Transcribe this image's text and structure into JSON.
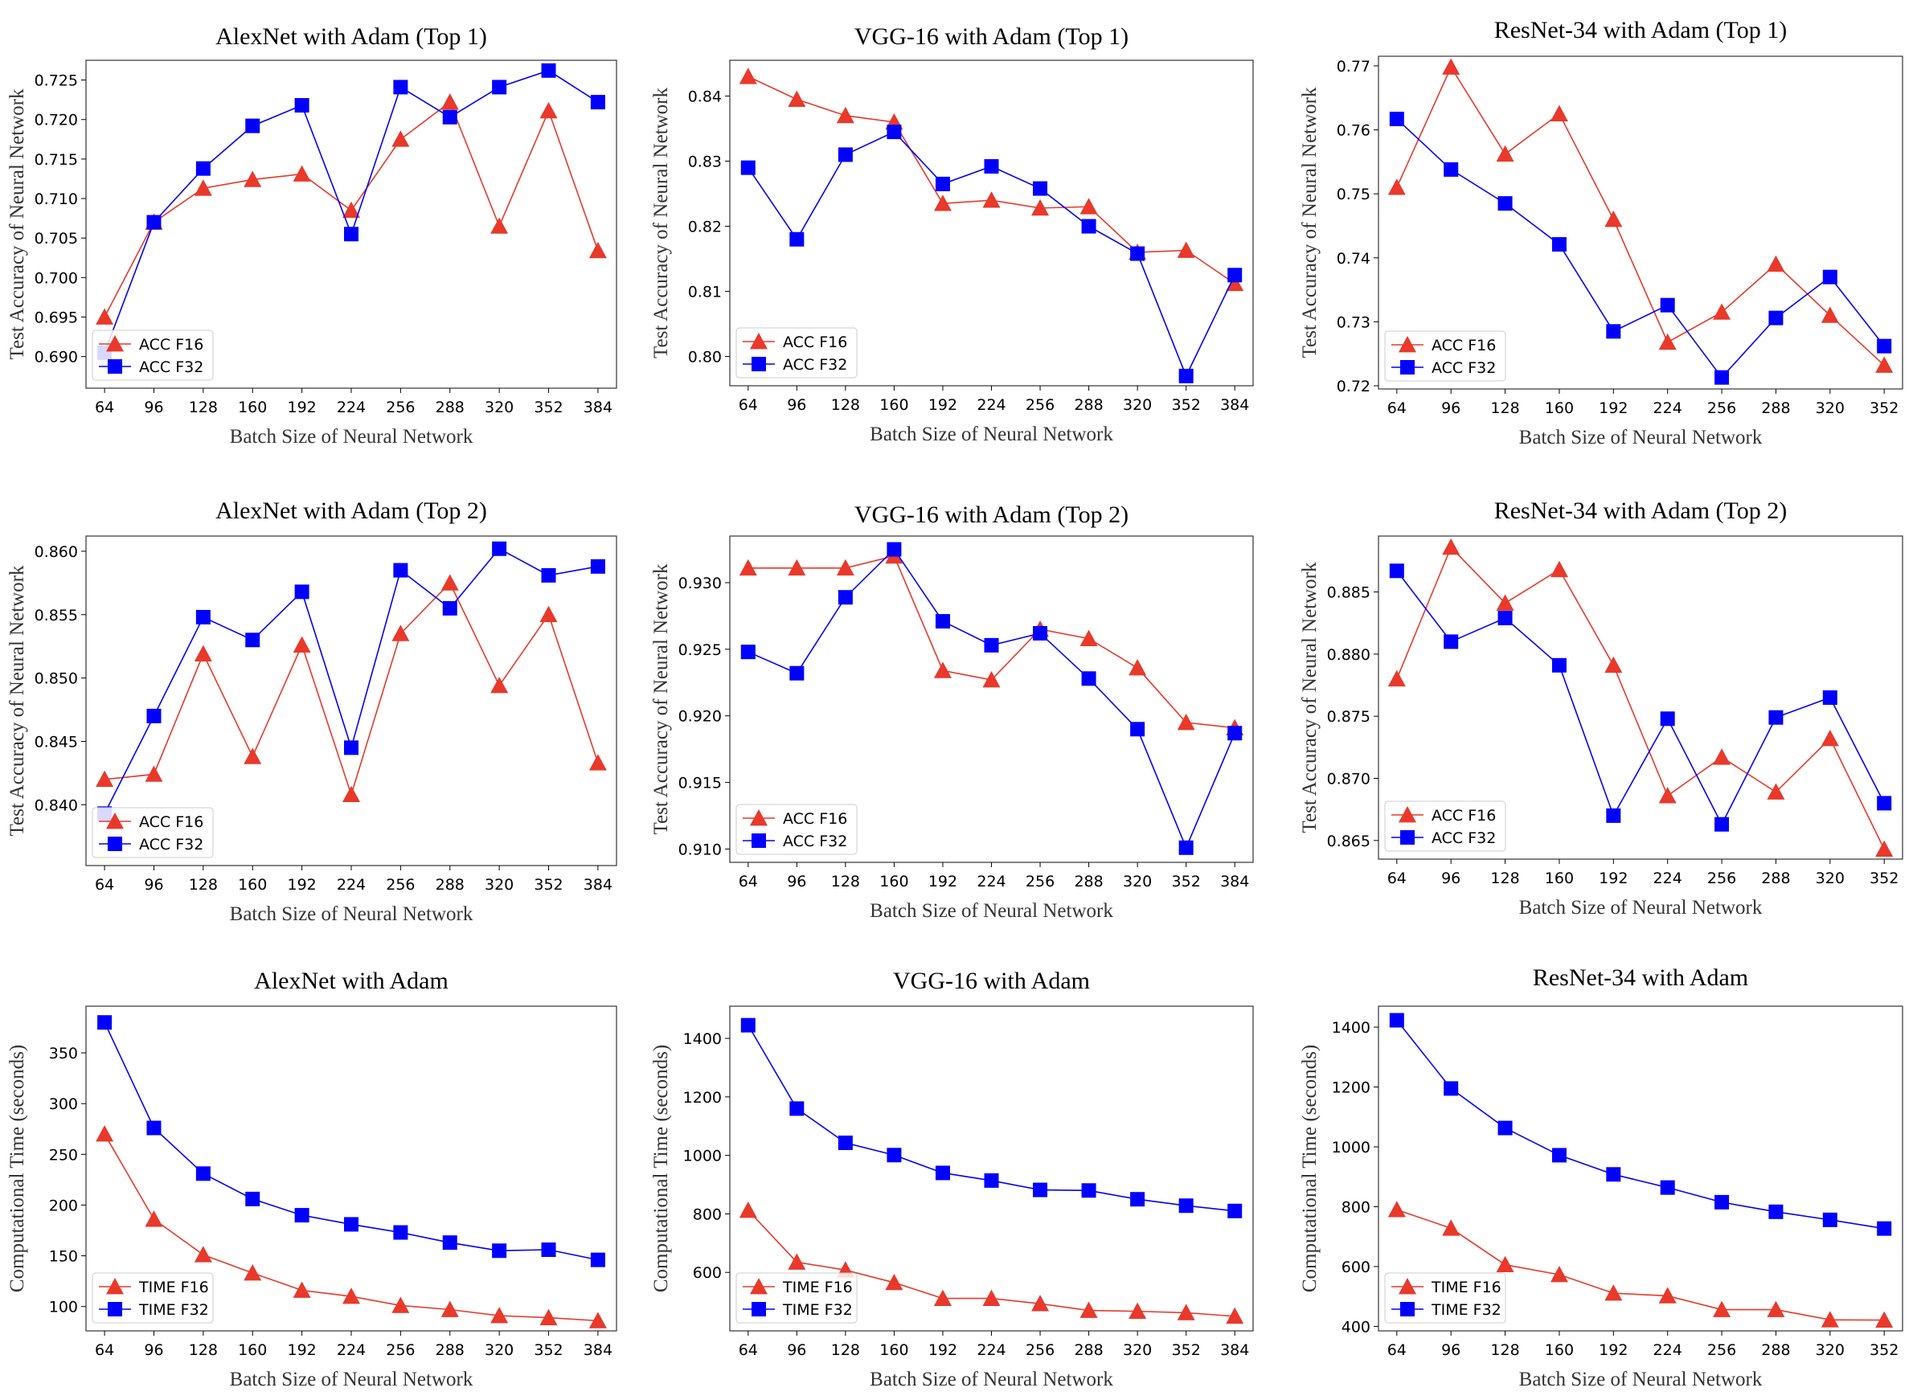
{
  "colors": {
    "f16": "#e8392b",
    "f32": "#0000ff"
  },
  "chart_data": [
    {
      "type": "line",
      "title": "AlexNet with Adam (Top 1)",
      "xlabel": "Batch Size of Neural Network",
      "ylabel": "Test Accuracy of Neural Network",
      "categories": [
        "64",
        "96",
        "128",
        "160",
        "192",
        "224",
        "256",
        "288",
        "320",
        "352",
        "384"
      ],
      "ylim": [
        0.686,
        0.7275
      ],
      "yticks": [
        0.69,
        0.695,
        0.7,
        0.705,
        0.71,
        0.715,
        0.72,
        0.725
      ],
      "ytick_labels": [
        "0.690",
        "0.695",
        "0.700",
        "0.705",
        "0.710",
        "0.715",
        "0.720",
        "0.725"
      ],
      "series": [
        {
          "name": "ACC F16",
          "marker": "triangle",
          "values": [
            0.695,
            0.707,
            0.7113,
            0.7124,
            0.7131,
            0.7085,
            0.7175,
            0.7222,
            0.7065,
            0.7211,
            0.7034
          ]
        },
        {
          "name": "ACC F32",
          "marker": "square",
          "values": [
            0.6905,
            0.707,
            0.7138,
            0.7192,
            0.7218,
            0.7055,
            0.7241,
            0.7203,
            0.7241,
            0.7262,
            0.7222
          ]
        }
      ]
    },
    {
      "type": "line",
      "title": "VGG-16 with Adam (Top 1)",
      "xlabel": "Batch Size of Neural Network",
      "ylabel": "Test Accuracy of Neural Network",
      "categories": [
        "64",
        "96",
        "128",
        "160",
        "192",
        "224",
        "256",
        "288",
        "320",
        "352",
        "384"
      ],
      "ylim": [
        0.7955,
        0.8455
      ],
      "yticks": [
        0.8,
        0.81,
        0.82,
        0.83,
        0.84
      ],
      "ytick_labels": [
        "0.80",
        "0.81",
        "0.82",
        "0.83",
        "0.84"
      ],
      "series": [
        {
          "name": "ACC F16",
          "marker": "triangle",
          "values": [
            0.843,
            0.8395,
            0.837,
            0.836,
            0.8235,
            0.824,
            0.8228,
            0.823,
            0.816,
            0.8163,
            0.8112
          ]
        },
        {
          "name": "ACC F32",
          "marker": "square",
          "values": [
            0.829,
            0.818,
            0.831,
            0.8345,
            0.8265,
            0.8292,
            0.8258,
            0.82,
            0.8158,
            0.797,
            0.8125
          ]
        }
      ]
    },
    {
      "type": "line",
      "title": "ResNet-34 with Adam (Top 1)",
      "xlabel": "Batch Size of Neural Network",
      "ylabel": "Test Accuracy of Neural Network",
      "categories": [
        "64",
        "96",
        "128",
        "160",
        "192",
        "224",
        "256",
        "288",
        "320",
        "352"
      ],
      "ylim": [
        0.7195,
        0.7715
      ],
      "yticks": [
        0.72,
        0.73,
        0.74,
        0.75,
        0.76,
        0.77
      ],
      "ytick_labels": [
        "0.72",
        "0.73",
        "0.74",
        "0.75",
        "0.76",
        "0.77"
      ],
      "series": [
        {
          "name": "ACC F16",
          "marker": "triangle",
          "values": [
            0.751,
            0.7698,
            0.7562,
            0.7625,
            0.746,
            0.7268,
            0.7315,
            0.739,
            0.731,
            0.7232
          ]
        },
        {
          "name": "ACC F32",
          "marker": "square",
          "values": [
            0.7617,
            0.7538,
            0.7485,
            0.7421,
            0.7285,
            0.7326,
            0.7213,
            0.7306,
            0.737,
            0.7262
          ]
        }
      ]
    },
    {
      "type": "line",
      "title": "AlexNet with Adam (Top 2)",
      "xlabel": "Batch Size of Neural Network",
      "ylabel": "Test Accuracy of Neural Network",
      "categories": [
        "64",
        "96",
        "128",
        "160",
        "192",
        "224",
        "256",
        "288",
        "320",
        "352",
        "384"
      ],
      "ylim": [
        0.8352,
        0.8612
      ],
      "yticks": [
        0.84,
        0.845,
        0.85,
        0.855,
        0.86
      ],
      "ytick_labels": [
        "0.840",
        "0.845",
        "0.850",
        "0.855",
        "0.860"
      ],
      "series": [
        {
          "name": "ACC F16",
          "marker": "triangle",
          "values": [
            0.842,
            0.8424,
            0.8519,
            0.8438,
            0.8526,
            0.8408,
            0.8535,
            0.8575,
            0.8494,
            0.855,
            0.8433
          ]
        },
        {
          "name": "ACC F32",
          "marker": "square",
          "values": [
            0.8393,
            0.847,
            0.8548,
            0.853,
            0.8568,
            0.8445,
            0.8585,
            0.8555,
            0.8602,
            0.8581,
            0.8588
          ]
        }
      ]
    },
    {
      "type": "line",
      "title": "VGG-16 with Adam (Top 2)",
      "xlabel": "Batch Size of Neural Network",
      "ylabel": "Test Accuracy of Neural Network",
      "categories": [
        "64",
        "96",
        "128",
        "160",
        "192",
        "224",
        "256",
        "288",
        "320",
        "352",
        "384"
      ],
      "ylim": [
        0.909,
        0.9335
      ],
      "yticks": [
        0.91,
        0.915,
        0.92,
        0.925,
        0.93
      ],
      "ytick_labels": [
        "0.910",
        "0.915",
        "0.920",
        "0.925",
        "0.930"
      ],
      "series": [
        {
          "name": "ACC F16",
          "marker": "triangle",
          "values": [
            0.9311,
            0.9311,
            0.9311,
            0.932,
            0.9234,
            0.9227,
            0.9265,
            0.9258,
            0.9236,
            0.9195,
            0.9191
          ]
        },
        {
          "name": "ACC F32",
          "marker": "square",
          "values": [
            0.9248,
            0.9232,
            0.9289,
            0.9325,
            0.9271,
            0.9253,
            0.9262,
            0.9228,
            0.919,
            0.9101,
            0.9187
          ]
        }
      ]
    },
    {
      "type": "line",
      "title": "ResNet-34 with Adam (Top 2)",
      "xlabel": "Batch Size of Neural Network",
      "ylabel": "Test Accuracy of Neural Network",
      "categories": [
        "64",
        "96",
        "128",
        "160",
        "192",
        "224",
        "256",
        "288",
        "320",
        "352"
      ],
      "ylim": [
        0.8635,
        0.8895
      ],
      "yticks": [
        0.865,
        0.87,
        0.875,
        0.88,
        0.885
      ],
      "ytick_labels": [
        "0.865",
        "0.870",
        "0.875",
        "0.880",
        "0.885"
      ],
      "series": [
        {
          "name": "ACC F16",
          "marker": "triangle",
          "values": [
            0.878,
            0.8886,
            0.8841,
            0.8868,
            0.8791,
            0.8686,
            0.8717,
            0.8689,
            0.8732,
            0.8643
          ]
        },
        {
          "name": "ACC F32",
          "marker": "square",
          "values": [
            0.8867,
            0.881,
            0.8829,
            0.8791,
            0.867,
            0.8748,
            0.8663,
            0.8749,
            0.8765,
            0.868
          ]
        }
      ]
    },
    {
      "type": "line",
      "title": "AlexNet with Adam",
      "xlabel": "Batch Size of Neural Network",
      "ylabel": "Computational Time (seconds)",
      "categories": [
        "64",
        "96",
        "128",
        "160",
        "192",
        "224",
        "256",
        "288",
        "320",
        "352",
        "384"
      ],
      "ylim": [
        76,
        396
      ],
      "yticks": [
        100,
        150,
        200,
        250,
        300,
        350
      ],
      "ytick_labels": [
        "100",
        "150",
        "200",
        "250",
        "300",
        "350"
      ],
      "series": [
        {
          "name": "TIME F16",
          "marker": "triangle",
          "values": [
            270,
            186,
            151,
            133,
            116,
            110,
            101,
            97,
            91,
            89,
            86
          ]
        },
        {
          "name": "TIME F32",
          "marker": "square",
          "values": [
            380,
            276,
            231,
            206,
            190,
            181,
            173,
            163,
            155,
            156,
            146
          ]
        }
      ]
    },
    {
      "type": "line",
      "title": "VGG-16 with Adam",
      "xlabel": "Batch Size of Neural Network",
      "ylabel": "Computational Time (seconds)",
      "categories": [
        "64",
        "96",
        "128",
        "160",
        "192",
        "224",
        "256",
        "288",
        "320",
        "352",
        "384"
      ],
      "ylim": [
        400,
        1510
      ],
      "yticks": [
        600,
        800,
        1000,
        1200,
        1400
      ],
      "ytick_labels": [
        "600",
        "800",
        "1000",
        "1200",
        "1400"
      ],
      "series": [
        {
          "name": "TIME F16",
          "marker": "triangle",
          "values": [
            812,
            635,
            608,
            565,
            511,
            511,
            493,
            470,
            467,
            462,
            450
          ]
        },
        {
          "name": "TIME F32",
          "marker": "square",
          "values": [
            1445,
            1160,
            1043,
            1001,
            940,
            914,
            882,
            880,
            850,
            828,
            810
          ]
        }
      ]
    },
    {
      "type": "line",
      "title": "ResNet-34 with Adam",
      "xlabel": "Batch Size of Neural Network",
      "ylabel": "Computational Time (seconds)",
      "categories": [
        "64",
        "96",
        "128",
        "160",
        "192",
        "224",
        "256",
        "288",
        "320",
        "352"
      ],
      "ylim": [
        385,
        1470
      ],
      "yticks": [
        400,
        600,
        800,
        1000,
        1200,
        1400
      ],
      "ytick_labels": [
        "400",
        "600",
        "800",
        "1000",
        "1200",
        "1400"
      ],
      "series": [
        {
          "name": "TIME F16",
          "marker": "triangle",
          "values": [
            790,
            728,
            606,
            573,
            511,
            502,
            456,
            456,
            422,
            421
          ]
        },
        {
          "name": "TIME F32",
          "marker": "square",
          "values": [
            1423,
            1195,
            1063,
            972,
            908,
            864,
            815,
            783,
            756,
            727
          ]
        }
      ]
    }
  ]
}
